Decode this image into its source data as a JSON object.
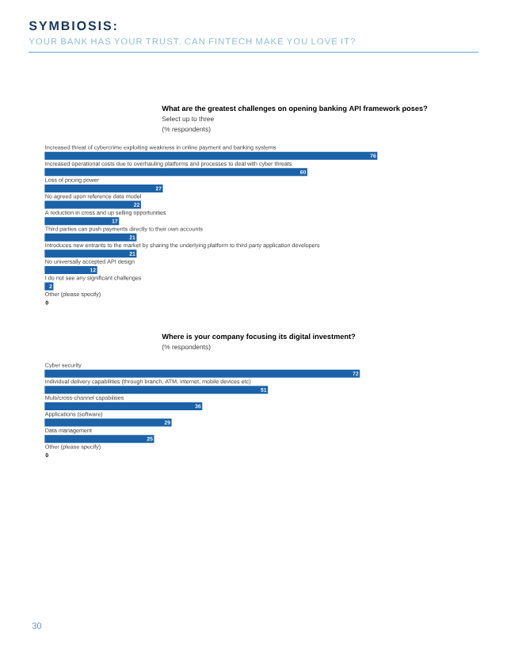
{
  "chart_data": [
    {
      "type": "bar",
      "orientation": "horizontal",
      "data_labels": true,
      "color": "#1b62a8",
      "title": "What are the greatest challenges on opening banking API framework poses?",
      "subtitle": "Select up to three",
      "annotations": [
        "SYMBIOSIS:",
        "YOUR BANK HAS YOUR TRUST. CAN FINTECH MAKE YOU LOVE IT?",
        "(% respondents)"
      ],
      "categories": [
        "Increased threat of cybercrime exploiting weakness in online payment and banking systems",
        "Increased operational costs due to overhauling platforms and processes to deal with cyber threats",
        "Loss of pricing power",
        "No agreed upon reference data model",
        "A reduction in cross and up selling opportunities",
        "Third parties can push payments directly to their own accounts",
        "Introduces new entrants to the market by sharing the underlying platform to third party application developers",
        "No universally accepted API design",
        "I do not see any significant challenges",
        "Other (please specify)"
      ],
      "values": [
        76,
        60,
        27,
        22,
        17,
        21,
        21,
        12,
        2,
        0
      ]
    },
    {
      "type": "bar",
      "orientation": "horizontal",
      "data_labels": true,
      "color": "#1b62a8",
      "title": "Where is your company focusing its digital investment?",
      "subtitle": "(% respondents)",
      "annotations": [
        "30"
      ],
      "categories": [
        "Cyber security",
        "Individual delivery capabilities (through branch, ATM, internet, mobile devices etc)",
        "Multi/cross-channel capabilities",
        "Applications (software)",
        "Data management",
        "Other (please specify)"
      ],
      "values": [
        72,
        51,
        36,
        29,
        25,
        0
      ]
    }
  ]
}
